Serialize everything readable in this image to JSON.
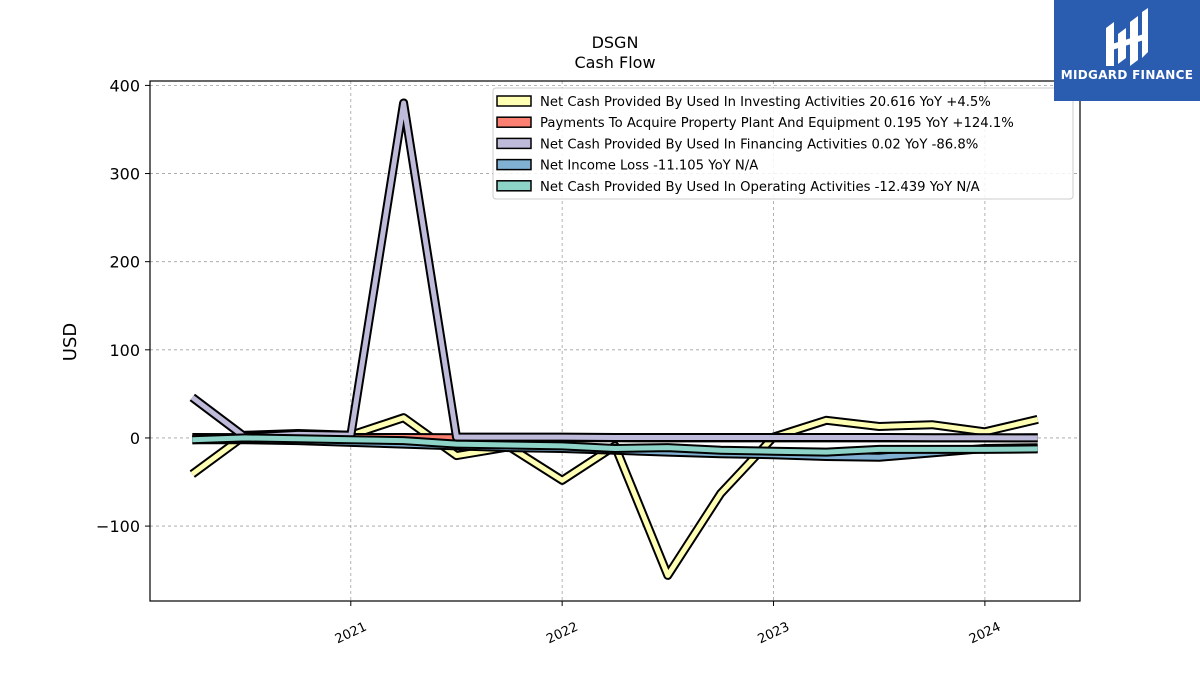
{
  "chart_data": {
    "type": "line",
    "title": "DSGN",
    "subtitle": "Cash Flow",
    "ylabel": "USD",
    "xlabel": "",
    "ylim": [
      -185,
      405
    ],
    "xlim": [
      2020.05,
      2024.45
    ],
    "yticks": [
      -100,
      0,
      100,
      200,
      300,
      400
    ],
    "ytick_labels": [
      "−100",
      "0",
      "100",
      "200",
      "300",
      "400"
    ],
    "xticks": [
      2021,
      2022,
      2023,
      2024
    ],
    "xtick_labels": [
      "2021",
      "2022",
      "2023",
      "2024"
    ],
    "grid": true,
    "legend_position": "top-right",
    "series": [
      {
        "name": "Net Cash Provided By Used In Investing Activities  20.616 YoY +4.5%",
        "color": "#ffffb3",
        "x": [
          2020.25,
          2020.5,
          2020.75,
          2021.0,
          2021.25,
          2021.5,
          2021.75,
          2022.0,
          2022.25,
          2022.5,
          2022.75,
          2023.0,
          2023.25,
          2023.5,
          2023.75,
          2024.0,
          2024.25
        ],
        "y": [
          -41,
          3,
          5,
          3,
          23,
          -20,
          -10,
          -48,
          -9,
          -156,
          -63,
          1,
          20,
          13,
          15,
          7,
          21
        ]
      },
      {
        "name": "Payments To Acquire Property Plant And Equipment  0.195 YoY +124.1%",
        "color": "#fb8072",
        "x": [
          2020.25,
          2020.5,
          2020.75,
          2021.0,
          2021.25,
          2021.5,
          2021.75,
          2022.0,
          2022.25,
          2022.5,
          2022.75,
          2023.0,
          2023.25,
          2023.5,
          2023.75,
          2024.0,
          2024.25
        ],
        "y": [
          0.5,
          0.4,
          0.4,
          0.5,
          0.5,
          0.3,
          0.2,
          0.2,
          0.2,
          0.1,
          0.1,
          0.1,
          0.1,
          0.1,
          0.1,
          0.1,
          0.2
        ]
      },
      {
        "name": "Net Cash Provided By Used In Financing Activities  0.02 YoY -86.8%",
        "color": "#bebada",
        "x": [
          2020.25,
          2020.5,
          2020.75,
          2021.0,
          2021.25,
          2021.5,
          2021.75,
          2022.0,
          2022.25,
          2022.5,
          2022.75,
          2023.0,
          2023.25,
          2023.5,
          2023.75,
          2024.0,
          2024.25
        ],
        "y": [
          46,
          1,
          4,
          3,
          380,
          1,
          1,
          1,
          0.5,
          0.5,
          0.5,
          0.5,
          0.5,
          0.5,
          0.3,
          0.2,
          0.02
        ]
      },
      {
        "name": "Net Income Loss  -11.105 YoY N/A",
        "color": "#80b1d3",
        "x": [
          2020.25,
          2020.5,
          2020.75,
          2021.0,
          2021.25,
          2021.5,
          2021.75,
          2022.0,
          2022.25,
          2022.5,
          2022.75,
          2023.0,
          2023.25,
          2023.5,
          2023.75,
          2024.0,
          2024.25
        ],
        "y": [
          -2,
          -2,
          -3,
          -5,
          -7,
          -9,
          -11,
          -12,
          -14,
          -16,
          -18,
          -19,
          -21,
          -22,
          -17,
          -12,
          -11.1
        ]
      },
      {
        "name": "Net Cash Provided By Used In Operating Activities  -12.439 YoY N/A",
        "color": "#8dd3c7",
        "x": [
          2020.25,
          2020.5,
          2020.75,
          2021.0,
          2021.25,
          2021.5,
          2021.75,
          2022.0,
          2022.25,
          2022.5,
          2022.75,
          2023.0,
          2023.25,
          2023.5,
          2023.75,
          2024.0,
          2024.25
        ],
        "y": [
          -2,
          0,
          -1,
          -2,
          -3,
          -7,
          -8,
          -9,
          -12,
          -11,
          -14,
          -15,
          -16,
          -13,
          -13,
          -13,
          -12.4
        ]
      }
    ]
  },
  "logo": {
    "text": "MIDGARD FINANCE",
    "color": "#2a5db0"
  }
}
